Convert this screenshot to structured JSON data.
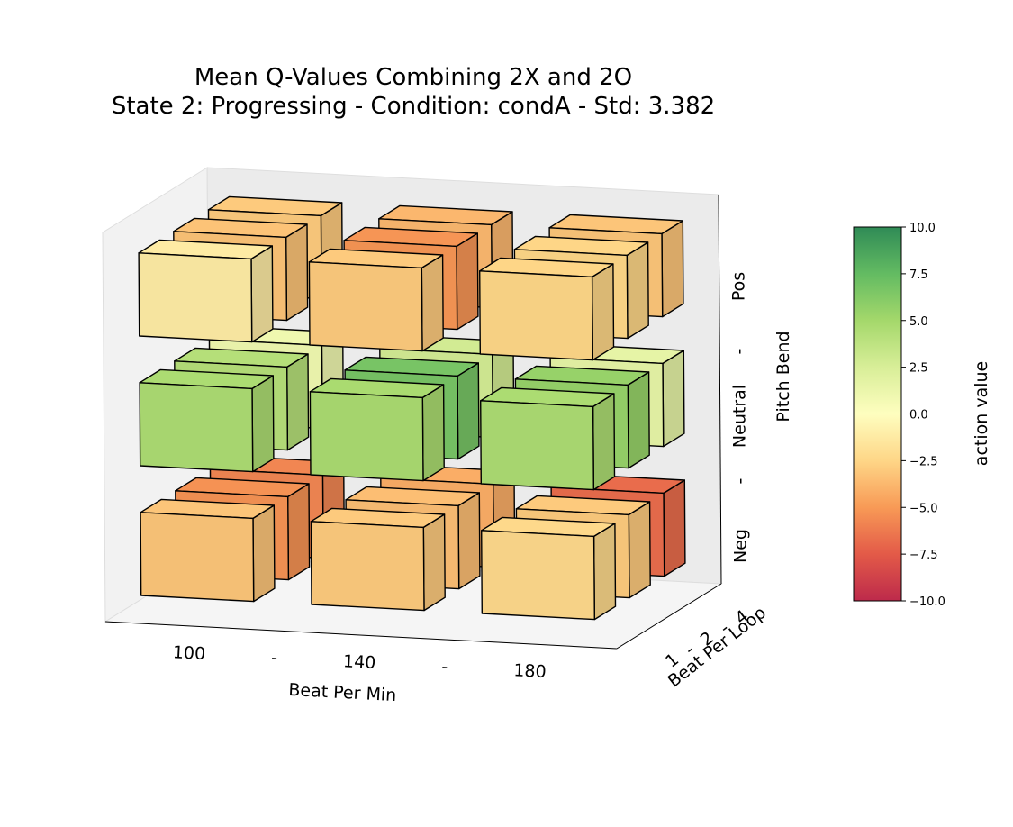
{
  "chart_data": {
    "type": "3d-bar",
    "title": [
      "Mean Q-Values Combining 2X and 2O",
      "State 2: Progressing  -  Condition: condA  -  Std: 3.382"
    ],
    "xlabel": "Beat Per Min",
    "ylabel": "Beat Per Loop",
    "zlabel": "Pitch Bend",
    "x_ticks": [
      "100",
      "-",
      "140",
      "-",
      "180"
    ],
    "y_ticks": [
      "1",
      "-",
      "2",
      "-",
      "4"
    ],
    "z_ticks": [
      "Neg",
      "-",
      "Neutral",
      "-",
      "Pos"
    ],
    "x_categories": [
      "100",
      "140",
      "180"
    ],
    "y_categories": [
      "1",
      "2",
      "4"
    ],
    "z_categories": [
      "Neg",
      "Neutral",
      "Pos"
    ],
    "values": {
      "Pos": [
        [
          -1.2,
          -3.0,
          -2.5
        ],
        [
          -3.3,
          -5.2,
          -2.5
        ],
        [
          -3.0,
          -3.8,
          -3.2
        ]
      ],
      "Neutral": [
        [
          4.6,
          4.7,
          4.6
        ],
        [
          4.2,
          6.7,
          5.5
        ],
        [
          1.0,
          2.8,
          1.6
        ]
      ],
      "Neg": [
        [
          -3.2,
          -3.0,
          -2.3
        ],
        [
          -5.3,
          -3.5,
          -3.0
        ],
        [
          -5.8,
          -4.2,
          -6.8
        ]
      ]
    },
    "colorbar": {
      "label": "action value",
      "range": [
        -10,
        10
      ],
      "ticks": [
        "10.0",
        "7.5",
        "5.0",
        "2.5",
        "0.0",
        "−2.5",
        "−5.0",
        "−7.5",
        "−10.0"
      ],
      "colormap": "RdYlGn"
    }
  }
}
